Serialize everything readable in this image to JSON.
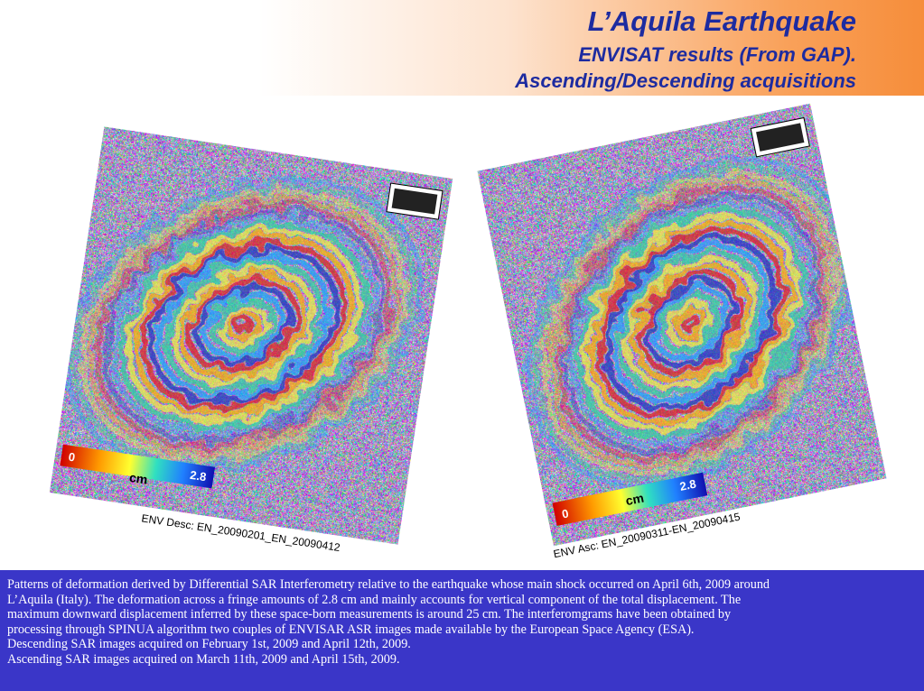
{
  "header": {
    "title": "L’Aquila Earthquake",
    "subtitle_lines": [
      "ENVISAT results (From GAP).",
      "Ascending/Descending acquisitions"
    ]
  },
  "images": [
    {
      "caption": "ENV Desc: EN_20090201_EN_20090412",
      "scale": {
        "min": "0",
        "unit": "cm",
        "max": "2.8"
      }
    },
    {
      "caption": "ENV Asc: EN_20090311-EN_20090415",
      "scale": {
        "min": "0",
        "unit": "cm",
        "max": "2.8"
      }
    }
  ],
  "description": {
    "lines": [
      "Patterns of deformation derived by Differential SAR Interferometry relative to the earthquake whose main shock occurred on April 6th, 2009 around",
      "L’Aquila (Italy). The deformation across a fringe amounts of 2.8 cm and mainly accounts for vertical component of the total displacement. The",
      "maximum downward displacement inferred by these space-born measurements is around 25 cm. The interferomgrams have been obtained by",
      "processing through SPINUA algorithm two couples of ENVISAR ASR images made available by the European Space Agency (ESA).",
      "Descending SAR images acquired on February 1st, 2009 and April 12th, 2009.",
      "Ascending SAR images acquired on March 11th, 2009 and April 15th, 2009."
    ]
  }
}
